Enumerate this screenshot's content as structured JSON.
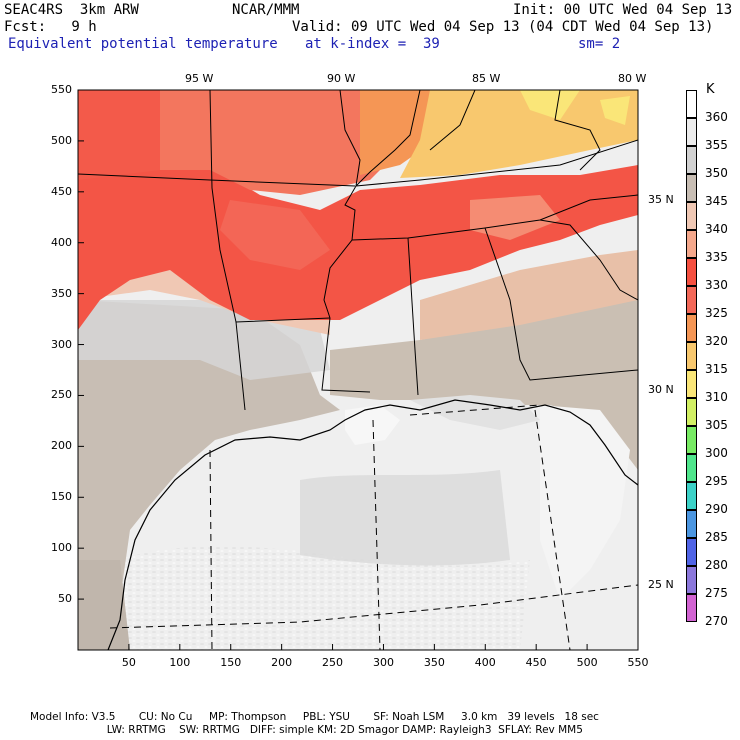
{
  "header": {
    "model": "SEAC4RS  3km ARW",
    "org": "NCAR/MMM",
    "init": "Init: 00 UTC Wed 04 Sep 13",
    "fcst": "Fcst:   9 h",
    "valid": "Valid: 09 UTC Wed 04 Sep 13 (04 CDT Wed 04 Sep 13)",
    "field": "Equivalent potential temperature",
    "level": "at k-index =  39",
    "smooth": "sm= 2"
  },
  "axes": {
    "x_ticks": [
      "50",
      "100",
      "150",
      "200",
      "250",
      "300",
      "350",
      "400",
      "450",
      "500",
      "550"
    ],
    "y_ticks": [
      "550",
      "500",
      "450",
      "400",
      "350",
      "300",
      "250",
      "200",
      "150",
      "100",
      "50"
    ],
    "lon_labels": [
      "95 W",
      "90 W",
      "85 W",
      "80 W"
    ],
    "lat_labels": [
      "35 N",
      "30 N",
      "25 N"
    ]
  },
  "legend": {
    "unit": "K",
    "levels": [
      "360",
      "355",
      "350",
      "345",
      "340",
      "335",
      "330",
      "325",
      "320",
      "315",
      "310",
      "305",
      "300",
      "295",
      "290",
      "285",
      "280",
      "275",
      "270"
    ],
    "colors": [
      "#ffffff",
      "#ececec",
      "#d2d2d2",
      "#c8beb4",
      "#f0c8b4",
      "#f5a88c",
      "#f55040",
      "#f36858",
      "#f59655",
      "#f8c86e",
      "#fae678",
      "#d2f064",
      "#78eb64",
      "#50e68c",
      "#3cd2c8",
      "#4b96e1",
      "#5064e6",
      "#8c78dc",
      "#d264d2"
    ]
  },
  "footer": {
    "line1": "Model Info: V3.5       CU: No Cu     MP: Thompson     PBL: YSU       SF: Noah LSM     3.0 km   39 levels   18 sec",
    "line2": "                       LW: RRTMG    SW: RRTMG   DIFF: simple KM: 2D Smagor DAMP: Rayleigh3  SFLAY: Rev MM5"
  }
}
